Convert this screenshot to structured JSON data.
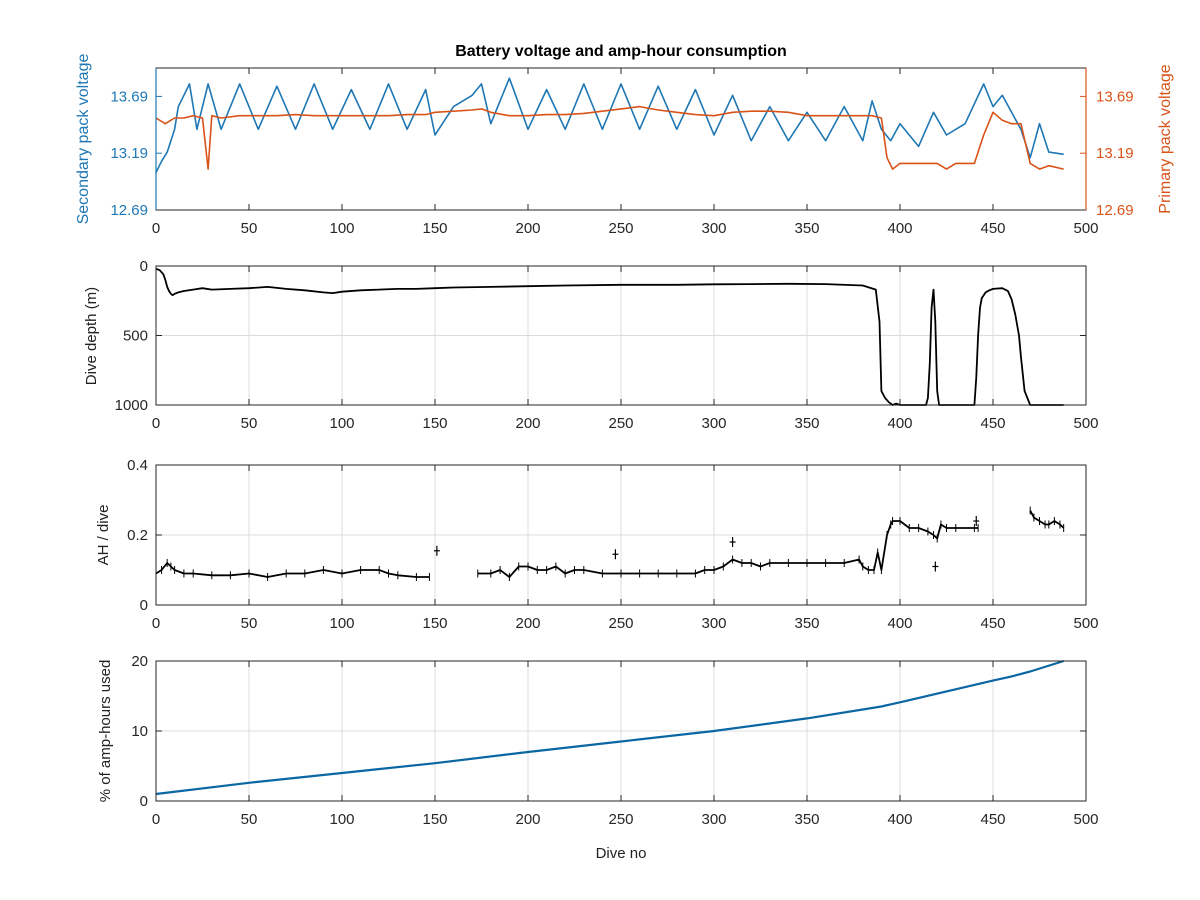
{
  "colors": {
    "secondary": "#1f77b4",
    "primary": "#d95319",
    "black": "#000000",
    "cumulative": "#0b67a3",
    "grid": "#dcdcdc"
  },
  "chart_data": [
    {
      "type": "line",
      "title": "Battery voltage and amp-hour consumption",
      "xlabel": "",
      "ylabel_left": "Secondary pack voltage",
      "ylabel_right": "Primary pack voltage",
      "xlim": [
        0,
        500
      ],
      "xticks": [
        "0",
        "50",
        "100",
        "150",
        "200",
        "250",
        "300",
        "350",
        "400",
        "450",
        "500"
      ],
      "ylim_left": [
        12.69,
        13.94
      ],
      "yticks_left": [
        "12.69",
        "13.19",
        "13.69"
      ],
      "ylim_right": [
        12.69,
        13.94
      ],
      "yticks_right": [
        "12.69",
        "13.19",
        "13.69"
      ],
      "grid": false,
      "series": [
        {
          "name": "",
          "axis": "left",
          "x": [
            0,
            3,
            6,
            8,
            10,
            12,
            15,
            18,
            22,
            28,
            35,
            45,
            55,
            65,
            75,
            85,
            95,
            105,
            115,
            125,
            135,
            145,
            150,
            160,
            170,
            175,
            180,
            190,
            200,
            210,
            220,
            230,
            240,
            250,
            260,
            270,
            280,
            290,
            300,
            310,
            320,
            330,
            340,
            350,
            360,
            370,
            380,
            385,
            390,
            395,
            400,
            410,
            418,
            425,
            435,
            445,
            450,
            455,
            465,
            470,
            475,
            480,
            488
          ],
          "y": [
            13.02,
            13.12,
            13.2,
            13.3,
            13.4,
            13.6,
            13.7,
            13.8,
            13.4,
            13.8,
            13.4,
            13.8,
            13.4,
            13.78,
            13.4,
            13.8,
            13.4,
            13.75,
            13.4,
            13.8,
            13.4,
            13.75,
            13.35,
            13.6,
            13.7,
            13.8,
            13.45,
            13.85,
            13.4,
            13.75,
            13.4,
            13.8,
            13.4,
            13.8,
            13.4,
            13.78,
            13.4,
            13.75,
            13.35,
            13.7,
            13.3,
            13.6,
            13.3,
            13.55,
            13.3,
            13.6,
            13.3,
            13.65,
            13.4,
            13.3,
            13.45,
            13.25,
            13.55,
            13.35,
            13.45,
            13.8,
            13.6,
            13.7,
            13.4,
            13.15,
            13.45,
            13.2,
            13.18
          ]
        },
        {
          "name": "",
          "axis": "right",
          "x": [
            0,
            5,
            10,
            15,
            20,
            25,
            28,
            30,
            35,
            45,
            55,
            65,
            75,
            85,
            95,
            105,
            115,
            125,
            135,
            145,
            150,
            160,
            170,
            175,
            180,
            190,
            200,
            210,
            220,
            230,
            240,
            250,
            260,
            270,
            280,
            290,
            300,
            310,
            320,
            330,
            340,
            350,
            360,
            370,
            380,
            385,
            390,
            393,
            396,
            400,
            410,
            420,
            425,
            430,
            440,
            445,
            450,
            455,
            460,
            465,
            470,
            475,
            480,
            488
          ],
          "y": [
            13.5,
            13.45,
            13.5,
            13.5,
            13.52,
            13.5,
            13.05,
            13.52,
            13.5,
            13.52,
            13.52,
            13.52,
            13.53,
            13.52,
            13.52,
            13.52,
            13.52,
            13.52,
            13.53,
            13.53,
            13.55,
            13.56,
            13.57,
            13.58,
            13.55,
            13.52,
            13.52,
            13.53,
            13.53,
            13.54,
            13.56,
            13.58,
            13.6,
            13.57,
            13.55,
            13.53,
            13.52,
            13.55,
            13.56,
            13.56,
            13.55,
            13.52,
            13.52,
            13.52,
            13.52,
            13.52,
            13.5,
            13.15,
            13.05,
            13.1,
            13.1,
            13.1,
            13.05,
            13.1,
            13.1,
            13.35,
            13.55,
            13.48,
            13.45,
            13.45,
            13.1,
            13.05,
            13.08,
            13.05
          ]
        }
      ]
    },
    {
      "type": "line",
      "title": "",
      "xlabel": "",
      "ylabel": "Dive depth (m)",
      "xlim": [
        0,
        500
      ],
      "xticks": [
        "0",
        "50",
        "100",
        "150",
        "200",
        "250",
        "300",
        "350",
        "400",
        "450",
        "500"
      ],
      "ylim": [
        0,
        1000
      ],
      "yticks": [
        "0",
        "500",
        "1000"
      ],
      "y_reversed": true,
      "grid": true,
      "series": [
        {
          "name": "",
          "x": [
            0,
            2,
            4,
            5,
            6,
            7,
            8,
            9,
            10,
            12,
            15,
            20,
            25,
            30,
            40,
            50,
            60,
            70,
            80,
            90,
            95,
            100,
            110,
            120,
            130,
            140,
            150,
            160,
            180,
            200,
            220,
            250,
            280,
            300,
            320,
            340,
            360,
            380,
            387,
            389,
            390,
            392,
            394,
            396,
            398,
            400,
            402,
            405,
            410,
            414,
            415,
            416,
            417,
            418,
            419,
            420,
            421,
            422,
            425,
            430,
            440,
            441,
            442,
            443,
            444,
            445,
            446,
            448,
            450,
            455,
            458,
            460,
            462,
            464,
            465,
            467,
            470,
            480,
            488
          ],
          "y": [
            20,
            30,
            60,
            100,
            150,
            180,
            200,
            210,
            200,
            190,
            180,
            170,
            160,
            170,
            165,
            160,
            150,
            165,
            175,
            190,
            195,
            185,
            175,
            170,
            165,
            165,
            160,
            155,
            150,
            145,
            140,
            135,
            135,
            132,
            130,
            128,
            130,
            140,
            170,
            400,
            900,
            950,
            980,
            1000,
            990,
            1000,
            1000,
            1000,
            1000,
            1000,
            950,
            700,
            300,
            170,
            400,
            900,
            1000,
            1000,
            1000,
            1000,
            1000,
            800,
            500,
            300,
            230,
            210,
            190,
            175,
            165,
            160,
            180,
            240,
            350,
            500,
            650,
            900,
            1000,
            1000,
            1000
          ]
        }
      ]
    },
    {
      "type": "line",
      "title": "",
      "xlabel": "",
      "ylabel": "AH / dive",
      "xlim": [
        0,
        500
      ],
      "xticks": [
        "0",
        "50",
        "100",
        "150",
        "200",
        "250",
        "300",
        "350",
        "400",
        "450",
        "500"
      ],
      "ylim": [
        0,
        0.4
      ],
      "yticks": [
        "0",
        "0.2",
        "0.4"
      ],
      "grid": true,
      "series": [
        {
          "name": "",
          "segments": [
            {
              "x": [
                0,
                3,
                6,
                8,
                10,
                15,
                20,
                30,
                40,
                50,
                60,
                70,
                80,
                90,
                100,
                110,
                120,
                125,
                130,
                140,
                147
              ],
              "y": [
                0.09,
                0.1,
                0.12,
                0.11,
                0.1,
                0.09,
                0.09,
                0.085,
                0.085,
                0.09,
                0.08,
                0.09,
                0.09,
                0.1,
                0.09,
                0.1,
                0.1,
                0.09,
                0.085,
                0.08,
                0.08
              ]
            },
            {
              "x": [
                173,
                180,
                185,
                190,
                195,
                200,
                205,
                210,
                215,
                220,
                225,
                230,
                240,
                250,
                260,
                270,
                280,
                290,
                295,
                300,
                305,
                310,
                315,
                320,
                325,
                330,
                340,
                350,
                360,
                370,
                378,
                380,
                383,
                386,
                388,
                390,
                393,
                395,
                396,
                400,
                405,
                410,
                415,
                418,
                420,
                422,
                425,
                430,
                440,
                442
              ],
              "y": [
                0.09,
                0.09,
                0.1,
                0.08,
                0.11,
                0.11,
                0.1,
                0.1,
                0.11,
                0.09,
                0.1,
                0.1,
                0.09,
                0.09,
                0.09,
                0.09,
                0.09,
                0.09,
                0.1,
                0.1,
                0.11,
                0.13,
                0.12,
                0.12,
                0.11,
                0.12,
                0.12,
                0.12,
                0.12,
                0.12,
                0.13,
                0.11,
                0.1,
                0.1,
                0.15,
                0.1,
                0.2,
                0.23,
                0.24,
                0.24,
                0.22,
                0.22,
                0.21,
                0.2,
                0.19,
                0.23,
                0.22,
                0.22,
                0.22,
                0.22
              ]
            },
            {
              "x": [
                470,
                472,
                475,
                478,
                480,
                483,
                486,
                488
              ],
              "y": [
                0.27,
                0.25,
                0.24,
                0.23,
                0.23,
                0.24,
                0.23,
                0.22
              ]
            }
          ],
          "outliers": [
            {
              "x": 151,
              "y": 0.155
            },
            {
              "x": 247,
              "y": 0.145
            },
            {
              "x": 310,
              "y": 0.18
            },
            {
              "x": 419,
              "y": 0.11
            },
            {
              "x": 441,
              "y": 0.24
            }
          ]
        }
      ]
    },
    {
      "type": "line",
      "title": "",
      "xlabel": "Dive no",
      "ylabel": "% of amp-hours used",
      "xlim": [
        0,
        500
      ],
      "xticks": [
        "0",
        "50",
        "100",
        "150",
        "200",
        "250",
        "300",
        "350",
        "400",
        "450",
        "500"
      ],
      "ylim": [
        0,
        20
      ],
      "yticks": [
        "0",
        "10",
        "20"
      ],
      "grid": true,
      "series": [
        {
          "name": "",
          "x": [
            0,
            50,
            100,
            150,
            200,
            250,
            300,
            350,
            390,
            400,
            450,
            460,
            470,
            488
          ],
          "y": [
            1,
            2.6,
            4.0,
            5.4,
            7.0,
            8.5,
            10.0,
            11.8,
            13.5,
            14.1,
            17.2,
            17.8,
            18.5,
            20
          ]
        }
      ]
    }
  ]
}
